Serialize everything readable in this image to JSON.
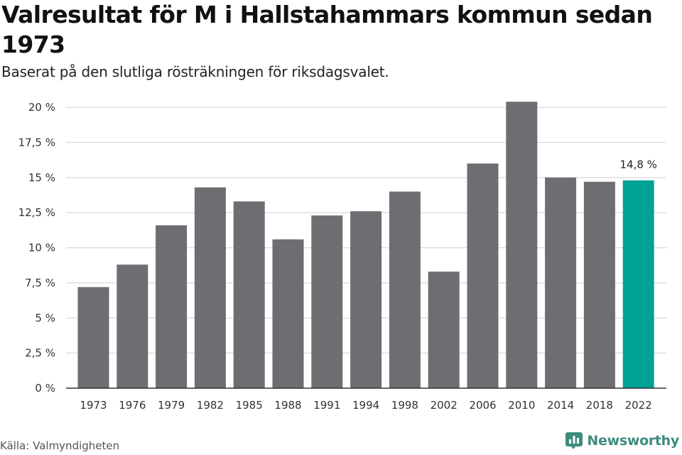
{
  "header": {
    "title": "Valresultat för M i Hallstahammars kommun sedan 1973",
    "subtitle": "Baserat på den slutliga rösträkningen för riksdagsvalet."
  },
  "footer": {
    "source": "Källa: Valmyndigheten",
    "brand_name": "Newsworthy",
    "brand_icon": "newsworthy-logo-icon"
  },
  "colors": {
    "bar_default": "#6e6d72",
    "bar_highlight": "#00a296",
    "grid": "#d9d9d9",
    "axis": "#333333",
    "brand": "#3d8c7e"
  },
  "chart_data": {
    "type": "bar",
    "categories": [
      "1973",
      "1976",
      "1979",
      "1982",
      "1985",
      "1988",
      "1991",
      "1994",
      "1998",
      "2002",
      "2006",
      "2010",
      "2014",
      "2018",
      "2022"
    ],
    "values": [
      7.2,
      8.8,
      11.6,
      14.3,
      13.3,
      10.6,
      12.3,
      12.6,
      14.0,
      8.3,
      16.0,
      20.4,
      15.0,
      14.7,
      14.8
    ],
    "highlight_index": 14,
    "data_labels": [
      {
        "index": 14,
        "text": "14,8 %"
      }
    ],
    "ylim": [
      0,
      20
    ],
    "yticks": [
      0,
      2.5,
      5,
      7.5,
      10,
      12.5,
      15,
      17.5,
      20
    ],
    "ytick_labels": [
      "0 %",
      "2,5 %",
      "5 %",
      "7,5 %",
      "10 %",
      "12,5 %",
      "15 %",
      "17,5 %",
      "20 %"
    ],
    "grid": true,
    "legend": "none",
    "xlabel": "",
    "ylabel": ""
  }
}
